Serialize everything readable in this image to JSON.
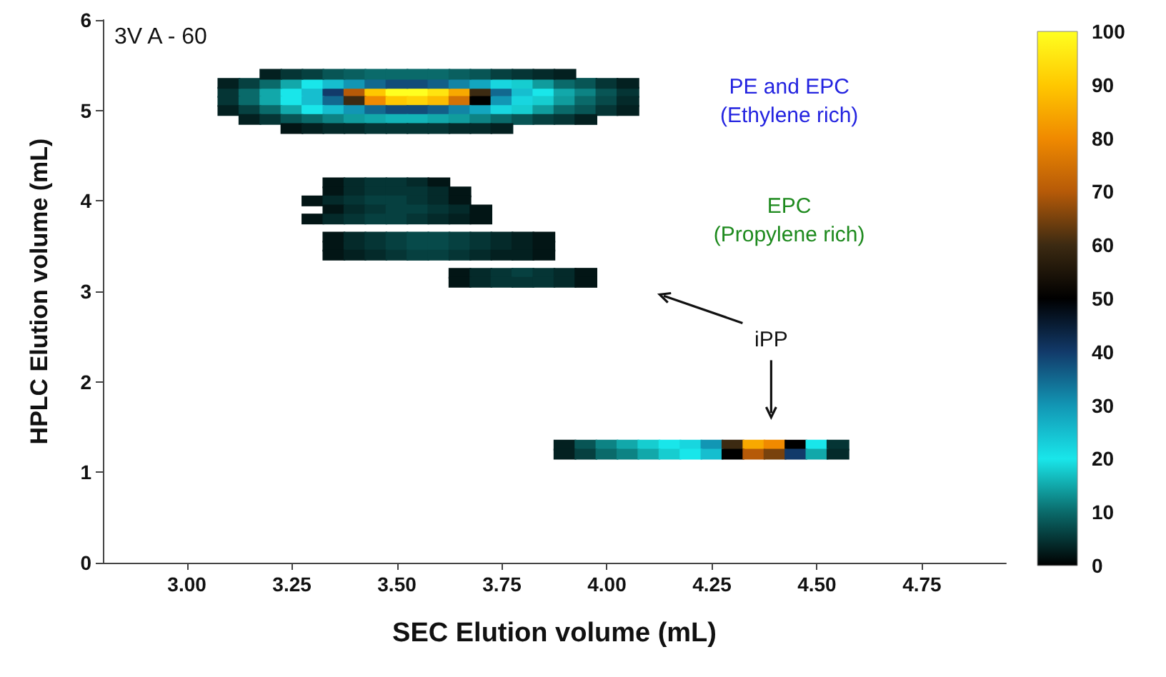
{
  "chart_data": {
    "type": "scatter",
    "xlabel": "SEC Elution volume (mL)",
    "ylabel": "HPLC Elution volume (mL)",
    "xlim": [
      2.8,
      4.95
    ],
    "xticks": [
      {
        "value": 3,
        "label": "3.00"
      },
      {
        "value": 3.25,
        "label": "3.25"
      },
      {
        "value": 3.5,
        "label": "3.50"
      },
      {
        "value": 3.75,
        "label": "3.75"
      },
      {
        "value": 4,
        "label": "4.00"
      },
      {
        "value": 4.25,
        "label": "4.25"
      },
      {
        "value": 4.5,
        "label": "4.50"
      },
      {
        "value": 4.75,
        "label": "4.75"
      }
    ],
    "ylim": [
      0,
      6
    ],
    "yticks": [
      0,
      1,
      2,
      3,
      4,
      5,
      6
    ],
    "clim": [
      0,
      100
    ],
    "cticks": [
      0,
      10,
      20,
      30,
      40,
      50,
      60,
      70,
      80,
      90,
      100
    ],
    "marker": "square",
    "grid": false,
    "annotations": [
      "3V A - 60",
      "PE and EPC\n(Ethylene rich)",
      "EPC\n(Propylene rich)",
      "iPP"
    ],
    "x": [
      3.1,
      3.15,
      3.2,
      3.25,
      3.3,
      3.35,
      3.4,
      3.45,
      3.5,
      3.55,
      3.6,
      3.65,
      3.7,
      3.75,
      3.8,
      3.85,
      3.9,
      3.95,
      4.0,
      4.05,
      3.1,
      3.15,
      3.2,
      3.25,
      3.3,
      3.35,
      3.4,
      3.45,
      3.5,
      3.55,
      3.6,
      3.65,
      3.7,
      3.75,
      3.8,
      3.85,
      3.9,
      3.95,
      4.0,
      4.05,
      3.1,
      3.15,
      3.2,
      3.25,
      3.3,
      3.35,
      3.4,
      3.45,
      3.5,
      3.55,
      3.6,
      3.65,
      3.7,
      3.75,
      3.8,
      3.85,
      3.9,
      3.95,
      4.0,
      4.05,
      3.1,
      3.15,
      3.2,
      3.25,
      3.3,
      3.35,
      3.4,
      3.45,
      3.5,
      3.55,
      3.6,
      3.65,
      3.7,
      3.75,
      3.8,
      3.85,
      3.9,
      3.95,
      4.0,
      4.05,
      3.15,
      3.2,
      3.25,
      3.3,
      3.35,
      3.4,
      3.45,
      3.5,
      3.55,
      3.6,
      3.65,
      3.7,
      3.75,
      3.8,
      3.85,
      3.9,
      3.95,
      3.2,
      3.25,
      3.3,
      3.35,
      3.4,
      3.45,
      3.5,
      3.55,
      3.6,
      3.65,
      3.7,
      3.75,
      3.8,
      3.85,
      3.9,
      3.25,
      3.3,
      3.35,
      3.4,
      3.45,
      3.5,
      3.55,
      3.6,
      3.65,
      3.7,
      3.75,
      3.35,
      3.4,
      3.45,
      3.5,
      3.55,
      3.6,
      3.35,
      3.4,
      3.45,
      3.5,
      3.55,
      3.6,
      3.65,
      3.3,
      3.35,
      3.4,
      3.45,
      3.5,
      3.55,
      3.6,
      3.65,
      3.35,
      3.4,
      3.45,
      3.5,
      3.55,
      3.6,
      3.65,
      3.7,
      3.3,
      3.35,
      3.4,
      3.45,
      3.5,
      3.55,
      3.6,
      3.65,
      3.7,
      3.35,
      3.4,
      3.45,
      3.5,
      3.55,
      3.6,
      3.65,
      3.7,
      3.75,
      3.8,
      3.85,
      3.35,
      3.4,
      3.45,
      3.5,
      3.55,
      3.6,
      3.65,
      3.7,
      3.75,
      3.8,
      3.85,
      3.35,
      3.4,
      3.45,
      3.5,
      3.55,
      3.6,
      3.65,
      3.7,
      3.75,
      3.8,
      3.85,
      3.65,
      3.7,
      3.75,
      3.8,
      3.85,
      3.9,
      3.95,
      3.65,
      3.7,
      3.75,
      3.8,
      3.85,
      3.9,
      3.95,
      3.9,
      3.95,
      4.0,
      4.05,
      4.1,
      4.15,
      4.2,
      4.25,
      4.3,
      4.35,
      4.4,
      4.45,
      4.5,
      4.55,
      3.9,
      3.95,
      4.0,
      4.05,
      4.1,
      4.15,
      4.2,
      4.25,
      4.3,
      4.35,
      4.4,
      4.45,
      4.5,
      4.55
    ],
    "values": [
      5.2,
      5.2,
      5.2,
      5.2,
      5.2,
      5.2,
      5.2,
      5.2,
      5.2,
      5.2,
      5.2,
      5.2,
      5.2,
      5.2,
      5.2,
      5.2,
      5.2,
      5.2,
      5.2,
      5.2,
      5.1,
      5.1,
      5.1,
      5.1,
      5.1,
      5.1,
      5.1,
      5.1,
      5.1,
      5.1,
      5.1,
      5.1,
      5.1,
      5.1,
      5.1,
      5.1,
      5.1,
      5.1,
      5.1,
      5.1,
      5.3,
      5.3,
      5.3,
      5.3,
      5.3,
      5.3,
      5.3,
      5.3,
      5.3,
      5.3,
      5.3,
      5.3,
      5.3,
      5.3,
      5.3,
      5.3,
      5.3,
      5.3,
      5.3,
      5.3,
      5.0,
      5.0,
      5.0,
      5.0,
      5.0,
      5.0,
      5.0,
      5.0,
      5.0,
      5.0,
      5.0,
      5.0,
      5.0,
      5.0,
      5.0,
      5.0,
      5.0,
      5.0,
      5.0,
      5.0,
      4.9,
      4.9,
      4.9,
      4.9,
      4.9,
      4.9,
      4.9,
      4.9,
      4.9,
      4.9,
      4.9,
      4.9,
      4.9,
      4.9,
      4.9,
      4.9,
      4.9,
      5.4,
      5.4,
      5.4,
      5.4,
      5.4,
      5.4,
      5.4,
      5.4,
      5.4,
      5.4,
      5.4,
      5.4,
      5.4,
      5.4,
      5.4,
      4.8,
      4.8,
      4.8,
      4.8,
      4.8,
      4.8,
      4.8,
      4.8,
      4.8,
      4.8,
      4.8,
      4.2,
      4.2,
      4.2,
      4.2,
      4.2,
      4.2,
      4.1,
      4.1,
      4.1,
      4.1,
      4.1,
      4.1,
      4.1,
      4.0,
      4.0,
      4.0,
      4.0,
      4.0,
      4.0,
      4.0,
      4.0,
      3.9,
      3.9,
      3.9,
      3.9,
      3.9,
      3.9,
      3.9,
      3.9,
      3.8,
      3.8,
      3.8,
      3.8,
      3.8,
      3.8,
      3.8,
      3.8,
      3.8,
      3.6,
      3.6,
      3.6,
      3.6,
      3.6,
      3.6,
      3.6,
      3.6,
      3.6,
      3.6,
      3.6,
      3.5,
      3.5,
      3.5,
      3.5,
      3.5,
      3.5,
      3.5,
      3.5,
      3.5,
      3.5,
      3.5,
      3.4,
      3.4,
      3.4,
      3.4,
      3.4,
      3.4,
      3.4,
      3.4,
      3.4,
      3.4,
      3.4,
      3.2,
      3.2,
      3.2,
      3.2,
      3.2,
      3.2,
      3.2,
      3.1,
      3.1,
      3.1,
      3.1,
      3.1,
      3.1,
      3.1,
      1.3,
      1.3,
      1.3,
      1.3,
      1.3,
      1.3,
      1.3,
      1.3,
      1.3,
      1.3,
      1.3,
      1.3,
      1.3,
      1.3,
      1.2,
      1.2,
      1.2,
      1.2,
      1.2,
      1.2,
      1.2,
      1.2,
      1.2,
      1.2,
      1.2,
      1.2,
      1.2,
      1.2
    ],
    "cvalues": [
      5,
      10,
      15,
      20,
      25,
      40,
      70,
      90,
      100,
      100,
      95,
      85,
      60,
      35,
      25,
      20,
      15,
      12,
      8,
      5,
      5,
      10,
      15,
      20,
      25,
      35,
      60,
      80,
      90,
      92,
      88,
      75,
      50,
      30,
      22,
      18,
      14,
      10,
      7,
      4,
      3,
      6,
      10,
      15,
      20,
      25,
      30,
      35,
      38,
      38,
      36,
      32,
      28,
      22,
      18,
      14,
      10,
      8,
      5,
      3,
      3,
      6,
      10,
      15,
      20,
      25,
      30,
      35,
      38,
      38,
      36,
      32,
      28,
      22,
      18,
      14,
      10,
      8,
      5,
      3,
      3,
      5,
      8,
      10,
      12,
      14,
      15,
      16,
      16,
      15,
      14,
      12,
      10,
      8,
      6,
      5,
      3,
      3,
      5,
      6,
      8,
      9,
      10,
      10,
      10,
      10,
      9,
      8,
      6,
      5,
      4,
      3,
      2,
      3,
      4,
      4,
      5,
      5,
      5,
      5,
      4,
      4,
      3,
      2,
      4,
      5,
      5,
      4,
      2,
      2,
      4,
      5,
      5,
      5,
      4,
      2,
      2,
      4,
      5,
      6,
      6,
      5,
      4,
      2,
      2,
      4,
      5,
      6,
      6,
      5,
      4,
      2,
      2,
      4,
      5,
      6,
      6,
      5,
      4,
      3,
      2,
      2,
      4,
      5,
      6,
      7,
      7,
      6,
      5,
      4,
      3,
      2,
      2,
      4,
      5,
      6,
      7,
      7,
      6,
      5,
      4,
      3,
      2,
      2,
      3,
      4,
      5,
      6,
      6,
      5,
      4,
      3,
      3,
      2,
      2,
      4,
      5,
      6,
      5,
      4,
      2,
      2,
      4,
      5,
      5,
      5,
      4,
      2,
      3,
      8,
      12,
      15,
      18,
      20,
      22,
      30,
      60,
      85,
      80,
      50,
      20,
      5,
      3,
      6,
      10,
      12,
      15,
      18,
      20,
      25,
      50,
      70,
      65,
      40,
      15,
      4
    ]
  }
}
